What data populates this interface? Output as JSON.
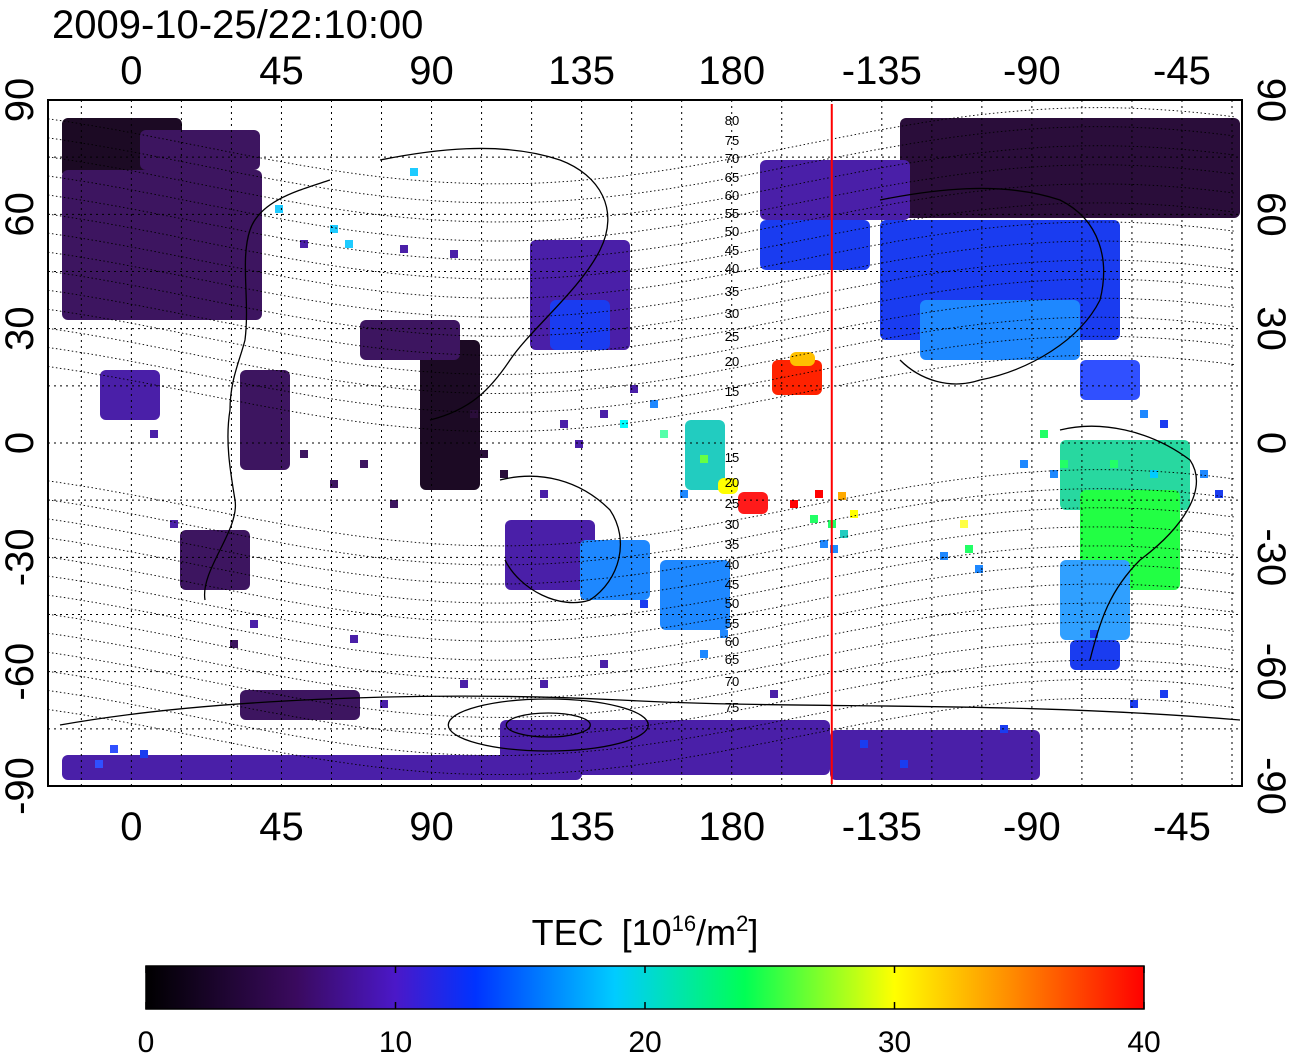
{
  "figure": {
    "timestamp": "2009-10-25/22:10:00",
    "lon_ticks_top": [
      "0",
      "45",
      "90",
      "135",
      "180",
      "-135",
      "-90",
      "-45"
    ],
    "lon_ticks_bottom": [
      "0",
      "45",
      "90",
      "135",
      "180",
      "-135",
      "-90",
      "-45"
    ],
    "lat_ticks_left": [
      "90",
      "60",
      "30",
      "0",
      "-30",
      "-60",
      "-90"
    ],
    "lat_ticks_right": [
      "90",
      "60",
      "30",
      "0",
      "-30",
      "-60",
      "-90"
    ],
    "magnetic_latitude_labels": [
      "80",
      "75",
      "70",
      "65",
      "60",
      "55",
      "50",
      "45",
      "40",
      "35",
      "30",
      "25",
      "20",
      "15",
      "15",
      "20",
      "25",
      "30",
      "35",
      "40",
      "45",
      "50",
      "55",
      "60",
      "65",
      "70",
      "75"
    ],
    "colorbar": {
      "title": "TEC",
      "unit_base": "[10",
      "unit_exp": "16",
      "unit_mid": "/m",
      "unit_exp2": "2",
      "unit_close": "]",
      "ticks": [
        "0",
        "10",
        "20",
        "30",
        "40"
      ],
      "range": [
        0,
        40
      ],
      "colormap": [
        "#000000",
        "#3a0a5e",
        "#4b18c8",
        "#0033ff",
        "#00ccff",
        "#00ff55",
        "#ffff00",
        "#ff8800",
        "#ff0000"
      ]
    },
    "map_extent": {
      "lon_range": [
        -25,
        333
      ],
      "lat_range": [
        -90,
        90
      ]
    },
    "terminator_line": {
      "color": "#ff0000",
      "longitude": -150
    }
  }
}
